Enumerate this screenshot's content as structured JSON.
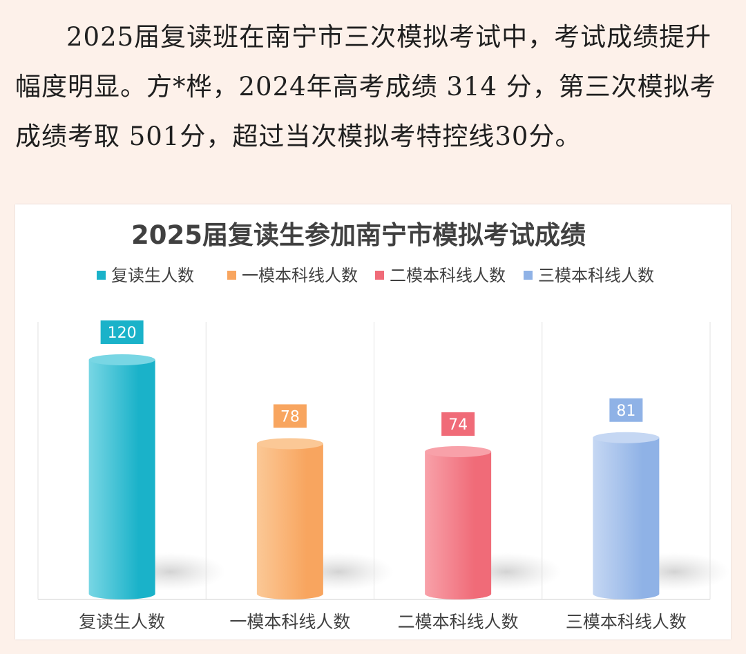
{
  "article": {
    "paragraph": "2025届复读班在南宁市三次模拟考试中，考试成绩提升幅度明显。方*桦，2024年高考成绩 314 分，第三次模拟考成绩考取 501分，超过当次模拟考特控线30分。"
  },
  "chart_data": {
    "type": "bar",
    "title": "2025届复读生参加南宁市模拟考试成绩",
    "categories": [
      "复读生人数",
      "一模本科线人数",
      "二模本科线人数",
      "三模本科线人数"
    ],
    "values": [
      120,
      78,
      74,
      81
    ],
    "ylim": [
      0,
      130
    ],
    "grid": false,
    "legend_position": "top",
    "colors": [
      "#1ab2c9",
      "#f8a55f",
      "#f06b78",
      "#8fb2e6"
    ],
    "light_colors": [
      "#78d6e4",
      "#fbc896",
      "#f8a1a9",
      "#c5d7f3"
    ],
    "legend": [
      "复读生人数",
      "一模本科线人数",
      "二模本科线人数",
      "三模本科线人数"
    ]
  }
}
